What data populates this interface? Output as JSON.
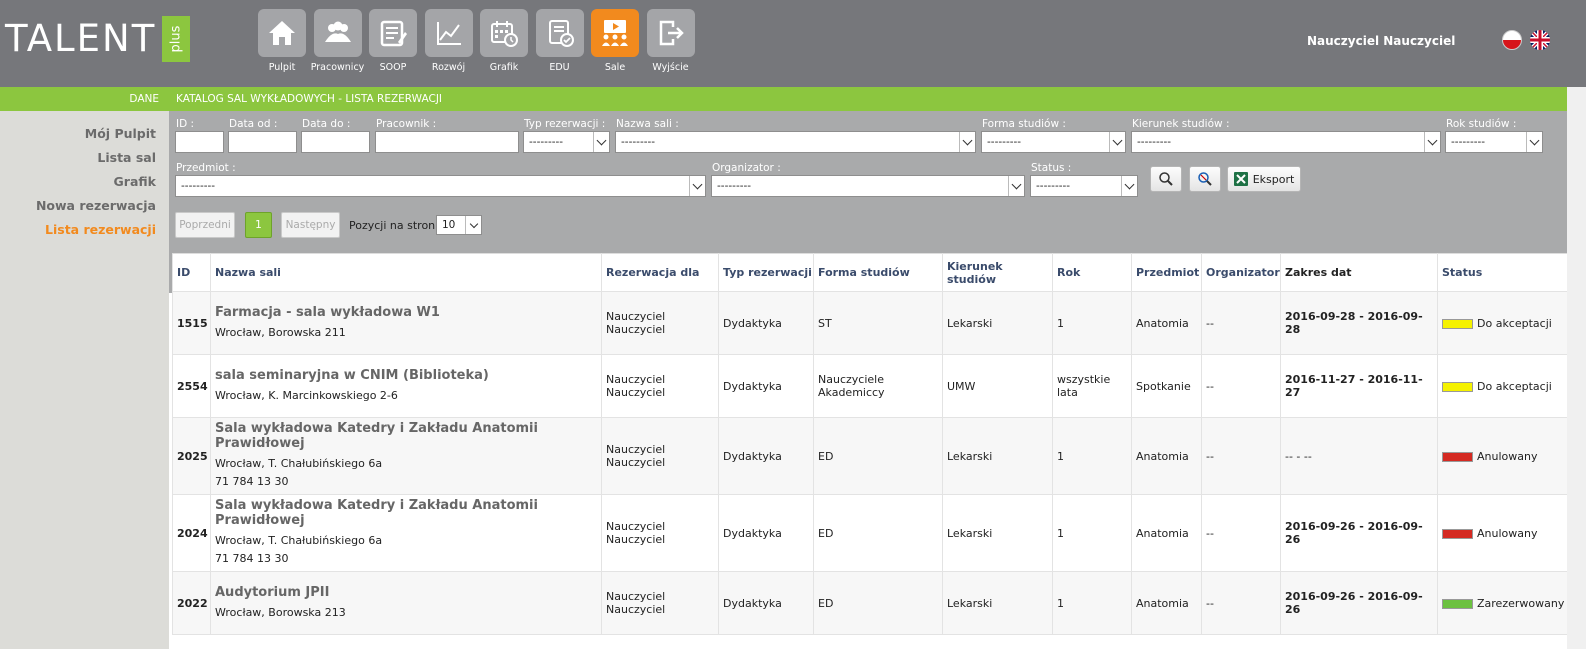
{
  "logo": {
    "text": "TALENT",
    "plus": "plus"
  },
  "nav": [
    {
      "label": "Pulpit",
      "icon": "home-icon"
    },
    {
      "label": "Pracownicy",
      "icon": "people-icon"
    },
    {
      "label": "SOOP",
      "icon": "form-icon"
    },
    {
      "label": "Rozwój",
      "icon": "chart-icon"
    },
    {
      "label": "Grafik",
      "icon": "calendar-icon"
    },
    {
      "label": "EDU",
      "icon": "document-check-icon"
    },
    {
      "label": "Sale",
      "icon": "presentation-icon"
    },
    {
      "label": "Wyjście",
      "icon": "exit-icon"
    }
  ],
  "user": {
    "name": "Nauczyciel Nauczyciel"
  },
  "sidebar": {
    "heading": "DANE",
    "items": [
      "Mój Pulpit",
      "Lista sal",
      "Grafik",
      "Nowa rezerwacja",
      "Lista rezerwacji"
    ]
  },
  "main": {
    "heading": "KATALOG SAL WYKŁADOWYCH - LISTA REZERWACJI"
  },
  "filters": {
    "id": "ID :",
    "date_from": "Data od :",
    "date_to": "Data do :",
    "employee": "Pracownik :",
    "res_type": "Typ rezerwacji :",
    "room_name": "Nazwa sali :",
    "study_form": "Forma studiów :",
    "field": "Kierunek studiów :",
    "year": "Rok studiów :",
    "subject": "Przedmiot :",
    "organizer": "Organizator :",
    "status": "Status :",
    "empty_option": "---------",
    "export": "Eksport"
  },
  "pager": {
    "prev": "Poprzedni",
    "current": "1",
    "next": "Następny",
    "per_page_label": "Pozycji na stronie",
    "per_page": "10"
  },
  "table": {
    "headers": [
      "ID",
      "Nazwa sali",
      "Rezerwacja dla",
      "Typ rezerwacji",
      "Forma studiów",
      "Kierunek studiów",
      "Rok",
      "Przedmiot",
      "Organizator",
      "Zakres dat",
      "Status"
    ],
    "rows": [
      {
        "id": "1515",
        "name": "Farmacja - sala wykładowa W1",
        "address": "Wrocław, Borowska 211",
        "phone": "",
        "for": "Nauczyciel Nauczyciel",
        "type": "Dydaktyka",
        "form": "ST",
        "field": "Lekarski",
        "year": "1",
        "subject": "Anatomia",
        "organizer": "--",
        "dates": "2016-09-28 - 2016-09-28",
        "status": "Do akceptacji",
        "status_color": "#f5f200"
      },
      {
        "id": "2554",
        "name": "sala seminaryjna w CNIM (Biblioteka)",
        "address": "Wrocław, K. Marcinkowskiego 2-6",
        "phone": "",
        "for": "Nauczyciel Nauczyciel",
        "type": "Dydaktyka",
        "form": "Nauczyciele Akademiccy",
        "field": "UMW",
        "year": "wszystkie lata",
        "subject": "Spotkanie",
        "organizer": "--",
        "dates": "2016-11-27 - 2016-11-27",
        "status": "Do akceptacji",
        "status_color": "#f5f200"
      },
      {
        "id": "2025",
        "name": "Sala wykładowa Katedry i Zakładu Anatomii Prawidłowej",
        "address": "Wrocław, T. Chałubińskiego 6a",
        "phone": "71 784 13 30",
        "for": "Nauczyciel Nauczyciel",
        "type": "Dydaktyka",
        "form": "ED",
        "field": "Lekarski",
        "year": "1",
        "subject": "Anatomia",
        "organizer": "--",
        "dates": "-- - --",
        "status": "Anulowany",
        "status_color": "#d42a22"
      },
      {
        "id": "2024",
        "name": "Sala wykładowa Katedry i Zakładu Anatomii Prawidłowej",
        "address": "Wrocław, T. Chałubińskiego 6a",
        "phone": "71 784 13 30",
        "for": "Nauczyciel Nauczyciel",
        "type": "Dydaktyka",
        "form": "ED",
        "field": "Lekarski",
        "year": "1",
        "subject": "Anatomia",
        "organizer": "--",
        "dates": "2016-09-26 - 2016-09-26",
        "status": "Anulowany",
        "status_color": "#d42a22"
      },
      {
        "id": "2022",
        "name": "Audytorium JPII",
        "address": "Wrocław, Borowska 213",
        "phone": "",
        "for": "Nauczyciel Nauczyciel",
        "type": "Dydaktyka",
        "form": "ED",
        "field": "Lekarski",
        "year": "1",
        "subject": "Anatomia",
        "organizer": "--",
        "dates": "2016-09-26 - 2016-09-26",
        "status": "Zarezerwowany",
        "status_color": "#6cc140"
      }
    ]
  },
  "colors": {
    "brand_green": "#8cc63f",
    "accent_orange": "#f28a1e",
    "header_gray": "#76777b"
  }
}
